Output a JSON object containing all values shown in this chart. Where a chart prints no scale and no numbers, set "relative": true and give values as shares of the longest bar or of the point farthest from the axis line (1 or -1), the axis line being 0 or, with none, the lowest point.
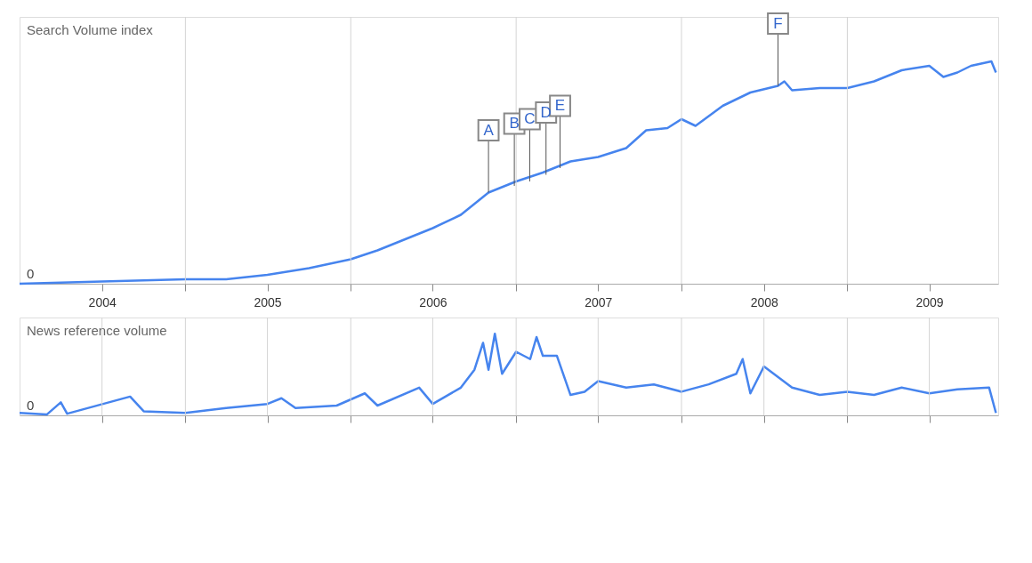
{
  "chart_data": [
    {
      "type": "line",
      "relative": true,
      "ylabel": "Search Volume index",
      "xlim": [
        "2004-01-01",
        "2009-11-30"
      ],
      "grid": "x",
      "tick_labels": "x",
      "xticks": [
        {
          "value": "2004-07-01",
          "label": "2004"
        },
        {
          "value": "2005-01-01",
          "label": null
        },
        {
          "value": "2005-07-01",
          "label": "2005"
        },
        {
          "value": "2006-01-01",
          "label": null
        },
        {
          "value": "2006-07-01",
          "label": "2006"
        },
        {
          "value": "2007-01-01",
          "label": null
        },
        {
          "value": "2007-07-01",
          "label": "2007"
        },
        {
          "value": "2008-01-01",
          "label": null
        },
        {
          "value": "2008-07-01",
          "label": "2008"
        },
        {
          "value": "2009-01-01",
          "label": null
        },
        {
          "value": "2009-07-01",
          "label": "2009"
        }
      ],
      "annotations": [
        "0",
        {
          "text": "A",
          "x": "2006-11-01",
          "y": 0.41
        },
        {
          "text": "B",
          "x": "2006-12-28",
          "y": 0.44
        },
        {
          "text": "C",
          "x": "2007-01-31",
          "y": 0.46
        },
        {
          "text": "D",
          "x": "2007-03-08",
          "y": 0.49
        },
        {
          "text": "E",
          "x": "2007-04-08",
          "y": 0.52
        },
        {
          "text": "F",
          "x": "2008-08-01",
          "y": 0.89
        }
      ],
      "series": [
        {
          "color": "#4684ee",
          "x": [
            "2004-01-01",
            "2004-07-01",
            "2005-01-01",
            "2005-04-01",
            "2005-07-01",
            "2005-10-01",
            "2006-01-01",
            "2006-03-01",
            "2006-05-01",
            "2006-07-01",
            "2006-09-01",
            "2006-11-01",
            "2007-01-01",
            "2007-03-01",
            "2007-05-01",
            "2007-07-01",
            "2007-09-01",
            "2007-10-15",
            "2007-12-01",
            "2008-01-01",
            "2008-02-01",
            "2008-04-01",
            "2008-06-01",
            "2008-08-01",
            "2008-08-15",
            "2008-09-01",
            "2008-11-01",
            "2009-01-01",
            "2009-03-01",
            "2009-05-01",
            "2009-07-01",
            "2009-08-01",
            "2009-09-01",
            "2009-10-01",
            "2009-11-15",
            "2009-11-25"
          ],
          "values": [
            0,
            0.01,
            0.02,
            0.02,
            0.04,
            0.07,
            0.11,
            0.15,
            0.2,
            0.25,
            0.31,
            0.41,
            0.46,
            0.5,
            0.55,
            0.57,
            0.61,
            0.69,
            0.7,
            0.74,
            0.71,
            0.8,
            0.86,
            0.89,
            0.91,
            0.87,
            0.88,
            0.88,
            0.91,
            0.96,
            0.98,
            0.93,
            0.95,
            0.98,
            1.0,
            0.95
          ]
        }
      ]
    },
    {
      "type": "line",
      "relative": true,
      "ylabel": "News reference volume",
      "xlim": [
        "2004-01-01",
        "2009-11-30"
      ],
      "grid": "x",
      "tick_labels": false,
      "xticks": [
        {
          "value": "2004-07-01",
          "label": null
        },
        {
          "value": "2005-01-01",
          "label": null
        },
        {
          "value": "2005-07-01",
          "label": null
        },
        {
          "value": "2006-01-01",
          "label": null
        },
        {
          "value": "2006-07-01",
          "label": null
        },
        {
          "value": "2007-01-01",
          "label": null
        },
        {
          "value": "2007-07-01",
          "label": null
        },
        {
          "value": "2008-01-01",
          "label": null
        },
        {
          "value": "2008-07-01",
          "label": null
        },
        {
          "value": "2009-01-01",
          "label": null
        },
        {
          "value": "2009-07-01",
          "label": null
        }
      ],
      "annotations": [
        "0"
      ],
      "series": [
        {
          "color": "#4684ee",
          "x": [
            "2004-01-01",
            "2004-03-01",
            "2004-04-01",
            "2004-04-15",
            "2004-09-01",
            "2004-10-01",
            "2005-01-01",
            "2005-04-01",
            "2005-07-01",
            "2005-08-01",
            "2005-09-01",
            "2005-12-01",
            "2006-02-01",
            "2006-03-01",
            "2006-06-01",
            "2006-07-01",
            "2006-09-01",
            "2006-10-01",
            "2006-10-20",
            "2006-11-01",
            "2006-11-15",
            "2006-12-01",
            "2007-01-01",
            "2007-02-01",
            "2007-02-15",
            "2007-03-01",
            "2007-04-01",
            "2007-05-01",
            "2007-06-01",
            "2007-07-01",
            "2007-09-01",
            "2007-11-01",
            "2008-01-01",
            "2008-03-01",
            "2008-05-01",
            "2008-05-15",
            "2008-06-01",
            "2008-07-01",
            "2008-09-01",
            "2008-11-01",
            "2009-01-01",
            "2009-03-01",
            "2009-05-01",
            "2009-07-01",
            "2009-09-01",
            "2009-11-10",
            "2009-11-25"
          ],
          "values": [
            0.03,
            0.01,
            0.16,
            0.02,
            0.23,
            0.05,
            0.03,
            0.09,
            0.14,
            0.21,
            0.09,
            0.12,
            0.27,
            0.12,
            0.34,
            0.14,
            0.34,
            0.56,
            0.89,
            0.56,
            1.0,
            0.51,
            0.78,
            0.69,
            0.96,
            0.73,
            0.73,
            0.25,
            0.29,
            0.42,
            0.34,
            0.38,
            0.29,
            0.38,
            0.51,
            0.69,
            0.27,
            0.6,
            0.34,
            0.25,
            0.29,
            0.25,
            0.34,
            0.27,
            0.32,
            0.34,
            0.03
          ]
        }
      ]
    }
  ]
}
